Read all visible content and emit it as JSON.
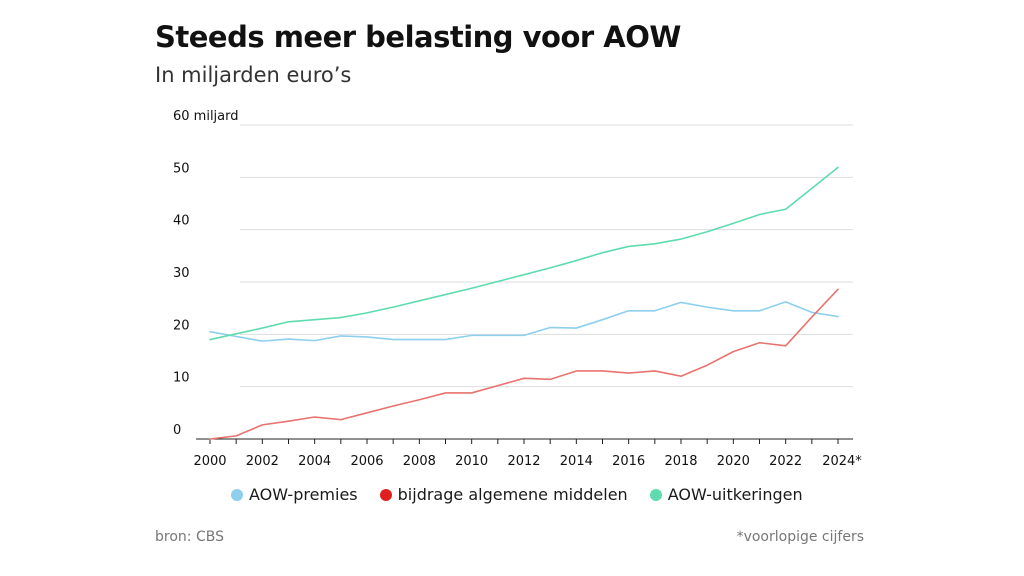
{
  "header": {
    "title": "Steeds meer belasting voor AOW",
    "subtitle": "In miljarden euro’s"
  },
  "footer": {
    "source": "bron: CBS",
    "note": "*voorlopige cijfers"
  },
  "chart_data": {
    "type": "line",
    "title": "Steeds meer belasting voor AOW",
    "subtitle": "In miljarden euro’s",
    "x": [
      2000,
      2001,
      2002,
      2003,
      2004,
      2005,
      2006,
      2007,
      2008,
      2009,
      2010,
      2011,
      2012,
      2013,
      2014,
      2015,
      2016,
      2017,
      2018,
      2019,
      2020,
      2021,
      2022,
      2023,
      2024
    ],
    "x_tick_labels": [
      "2000",
      "2002",
      "2004",
      "2006",
      "2008",
      "2010",
      "2012",
      "2014",
      "2016",
      "2018",
      "2020",
      "2022",
      "2024*"
    ],
    "x_tick_values": [
      2000,
      2002,
      2004,
      2006,
      2008,
      2010,
      2012,
      2014,
      2016,
      2018,
      2020,
      2022,
      2024
    ],
    "y_tick_labels": [
      "0",
      "10",
      "20",
      "30",
      "40",
      "50",
      "60 miljard"
    ],
    "y_tick_values": [
      0,
      10,
      20,
      30,
      40,
      50,
      60
    ],
    "xlim": [
      2000,
      2024.5
    ],
    "ylim": [
      0,
      60
    ],
    "grid": true,
    "legend_position": "bottom",
    "series": [
      {
        "name": "AOW-premies",
        "color": "#8ecfee",
        "values": [
          20.5,
          19.6,
          18.7,
          19.1,
          18.8,
          19.7,
          19.5,
          19.0,
          19.0,
          19.0,
          19.8,
          19.8,
          19.8,
          21.3,
          21.2,
          22.8,
          24.5,
          24.5,
          26.1,
          25.2,
          24.5,
          24.5,
          26.2,
          24.2,
          23.4
        ]
      },
      {
        "name": "bijdrage algemene middelen",
        "color": "#e8736f",
        "values": [
          0.0,
          0.6,
          2.7,
          3.4,
          4.2,
          3.7,
          5.0,
          6.3,
          7.5,
          8.8,
          8.8,
          10.2,
          11.6,
          11.4,
          13.0,
          13.0,
          12.6,
          13.0,
          12.0,
          14.1,
          16.7,
          18.4,
          17.8,
          23.3,
          28.6
        ]
      },
      {
        "name": "AOW-uitkeringen",
        "color": "#5fdcae",
        "values": [
          19.0,
          20.1,
          21.2,
          22.4,
          22.8,
          23.2,
          24.1,
          25.2,
          26.4,
          27.6,
          28.8,
          30.1,
          31.4,
          32.7,
          34.1,
          35.6,
          36.8,
          37.3,
          38.2,
          39.6,
          41.2,
          42.9,
          43.9,
          47.9,
          51.9
        ]
      }
    ],
    "legend_dot_colors": [
      "#8ecfee",
      "#e02020",
      "#5fdcae"
    ]
  }
}
